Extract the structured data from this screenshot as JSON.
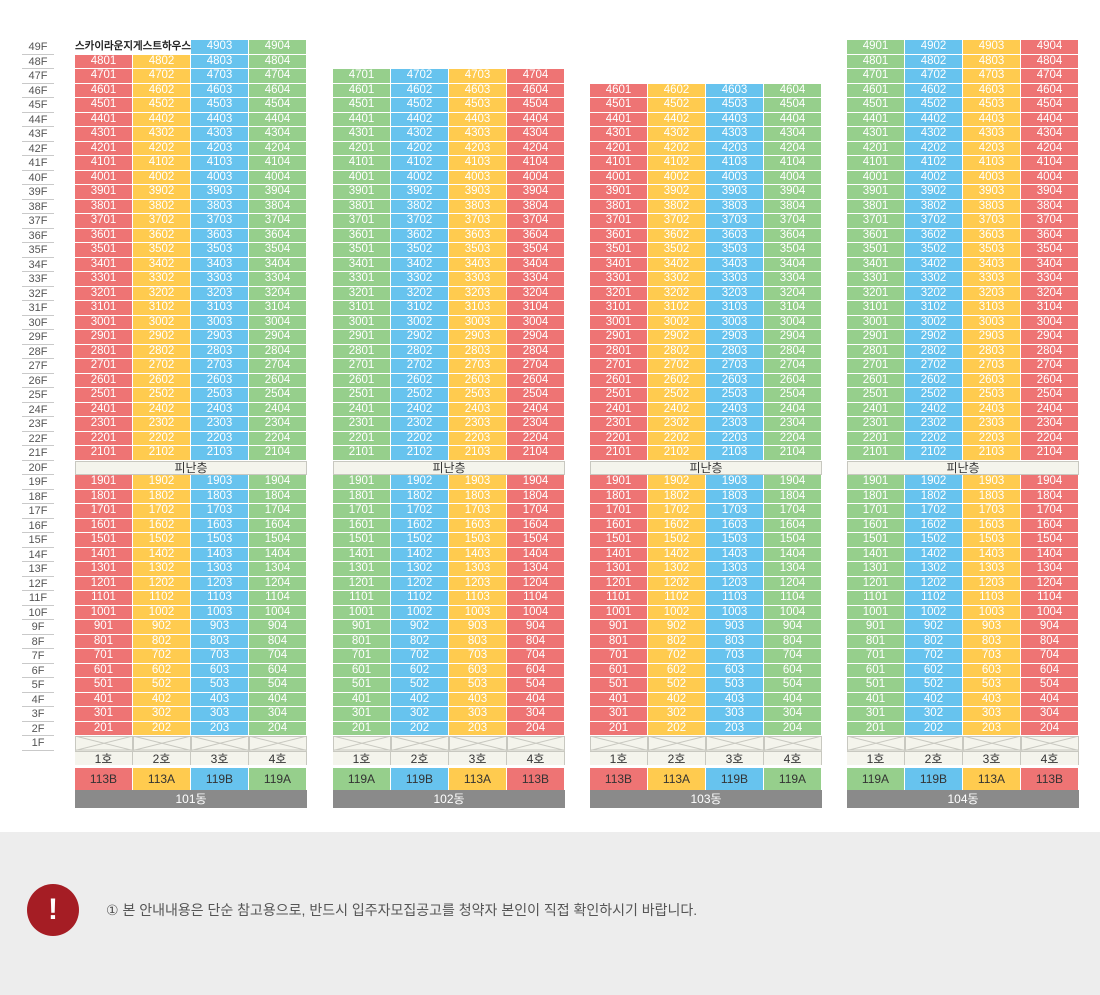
{
  "colors": {
    "red": "#ee7474",
    "yellow": "#ffcb4f",
    "blue": "#67c3ee",
    "green": "#96cf8c"
  },
  "floor_labels": [
    "49F",
    "48F",
    "47F",
    "46F",
    "45F",
    "44F",
    "43F",
    "42F",
    "41F",
    "40F",
    "39F",
    "38F",
    "37F",
    "36F",
    "35F",
    "34F",
    "33F",
    "32F",
    "31F",
    "30F",
    "29F",
    "28F",
    "27F",
    "26F",
    "25F",
    "24F",
    "23F",
    "22F",
    "21F",
    "20F",
    "19F",
    "18F",
    "17F",
    "16F",
    "15F",
    "14F",
    "13F",
    "12F",
    "11F",
    "10F",
    "9F",
    "8F",
    "7F",
    "6F",
    "5F",
    "4F",
    "3F",
    "2F",
    "1F"
  ],
  "refuge_label": "피난층",
  "buildings": [
    {
      "name": "101동",
      "top_floor": 48,
      "roof_row": [
        "스카이라운지",
        "게스트하우스",
        "4903",
        "4904"
      ],
      "line_colors": [
        "red",
        "yellow",
        "blue",
        "green"
      ],
      "ho": [
        "1호",
        "2호",
        "3호",
        "4호"
      ],
      "types": [
        "113B",
        "113A",
        "119B",
        "119A"
      ]
    },
    {
      "name": "102동",
      "top_floor": 47,
      "roof_row": null,
      "line_colors": [
        "green",
        "blue",
        "yellow",
        "red"
      ],
      "ho": [
        "1호",
        "2호",
        "3호",
        "4호"
      ],
      "types": [
        "119A",
        "119B",
        "113A",
        "113B"
      ]
    },
    {
      "name": "103동",
      "top_floor": 46,
      "roof_row": null,
      "line_colors": [
        "red",
        "yellow",
        "blue",
        "green"
      ],
      "ho": [
        "1호",
        "2호",
        "3호",
        "4호"
      ],
      "types": [
        "113B",
        "113A",
        "119B",
        "119A"
      ]
    },
    {
      "name": "104동",
      "top_floor": 49,
      "roof_row": null,
      "line_colors": [
        "green",
        "blue",
        "yellow",
        "red"
      ],
      "ho": [
        "1호",
        "2호",
        "3호",
        "4호"
      ],
      "types": [
        "119A",
        "119B",
        "113A",
        "113B"
      ]
    }
  ],
  "notice": {
    "icon": "exclamation-icon",
    "text": "① 본 안내내용은 단순 참고용으로, 반드시 입주자모집공고를 청약자 본인이 직접 확인하시기 바랍니다."
  }
}
